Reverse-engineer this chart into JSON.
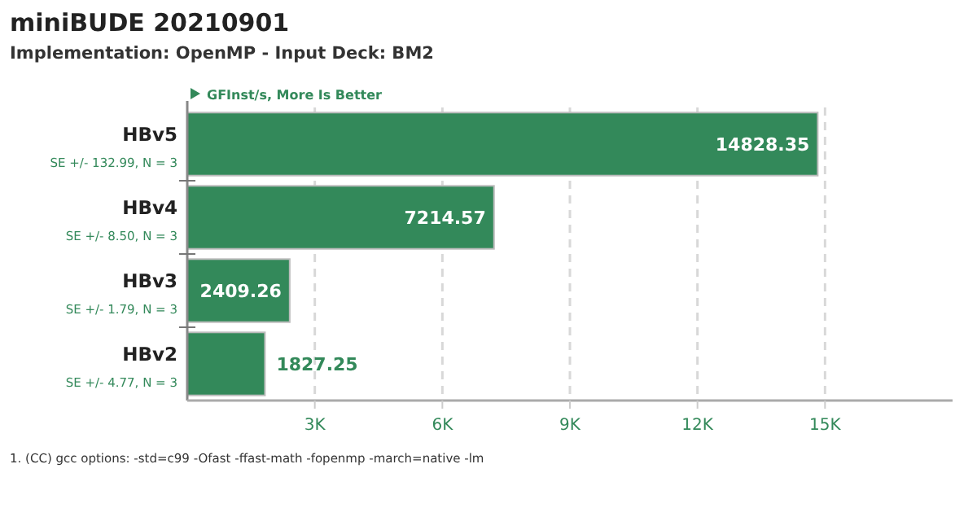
{
  "chart_data": {
    "type": "bar",
    "orientation": "horizontal",
    "title": "miniBUDE 20210901",
    "subtitle": "Implementation: OpenMP - Input Deck: BM2",
    "xlabel": "GFInst/s, More Is Better",
    "categories": [
      "HBv5",
      "HBv4",
      "HBv3",
      "HBv2"
    ],
    "values": [
      14828.35,
      7214.57,
      2409.26,
      1827.25
    ],
    "color": "#33895a",
    "data_labels": true,
    "xlim": [
      0,
      18000
    ],
    "xticks": [
      {
        "value": 3000,
        "label": "3K"
      },
      {
        "value": 6000,
        "label": "6K"
      },
      {
        "value": 9000,
        "label": "9K"
      },
      {
        "value": 12000,
        "label": "12K"
      },
      {
        "value": 15000,
        "label": "15K"
      }
    ],
    "grid": "x",
    "annotations": [
      "SE +/- 132.99, N = 3",
      "SE +/- 8.50, N = 3",
      "SE +/- 1.79, N = 3",
      "SE +/- 4.77, N = 3",
      "1. (CC) gcc options: -std=c99 -Ofast -ffast-math -fopenmp -march=native -lm"
    ]
  }
}
